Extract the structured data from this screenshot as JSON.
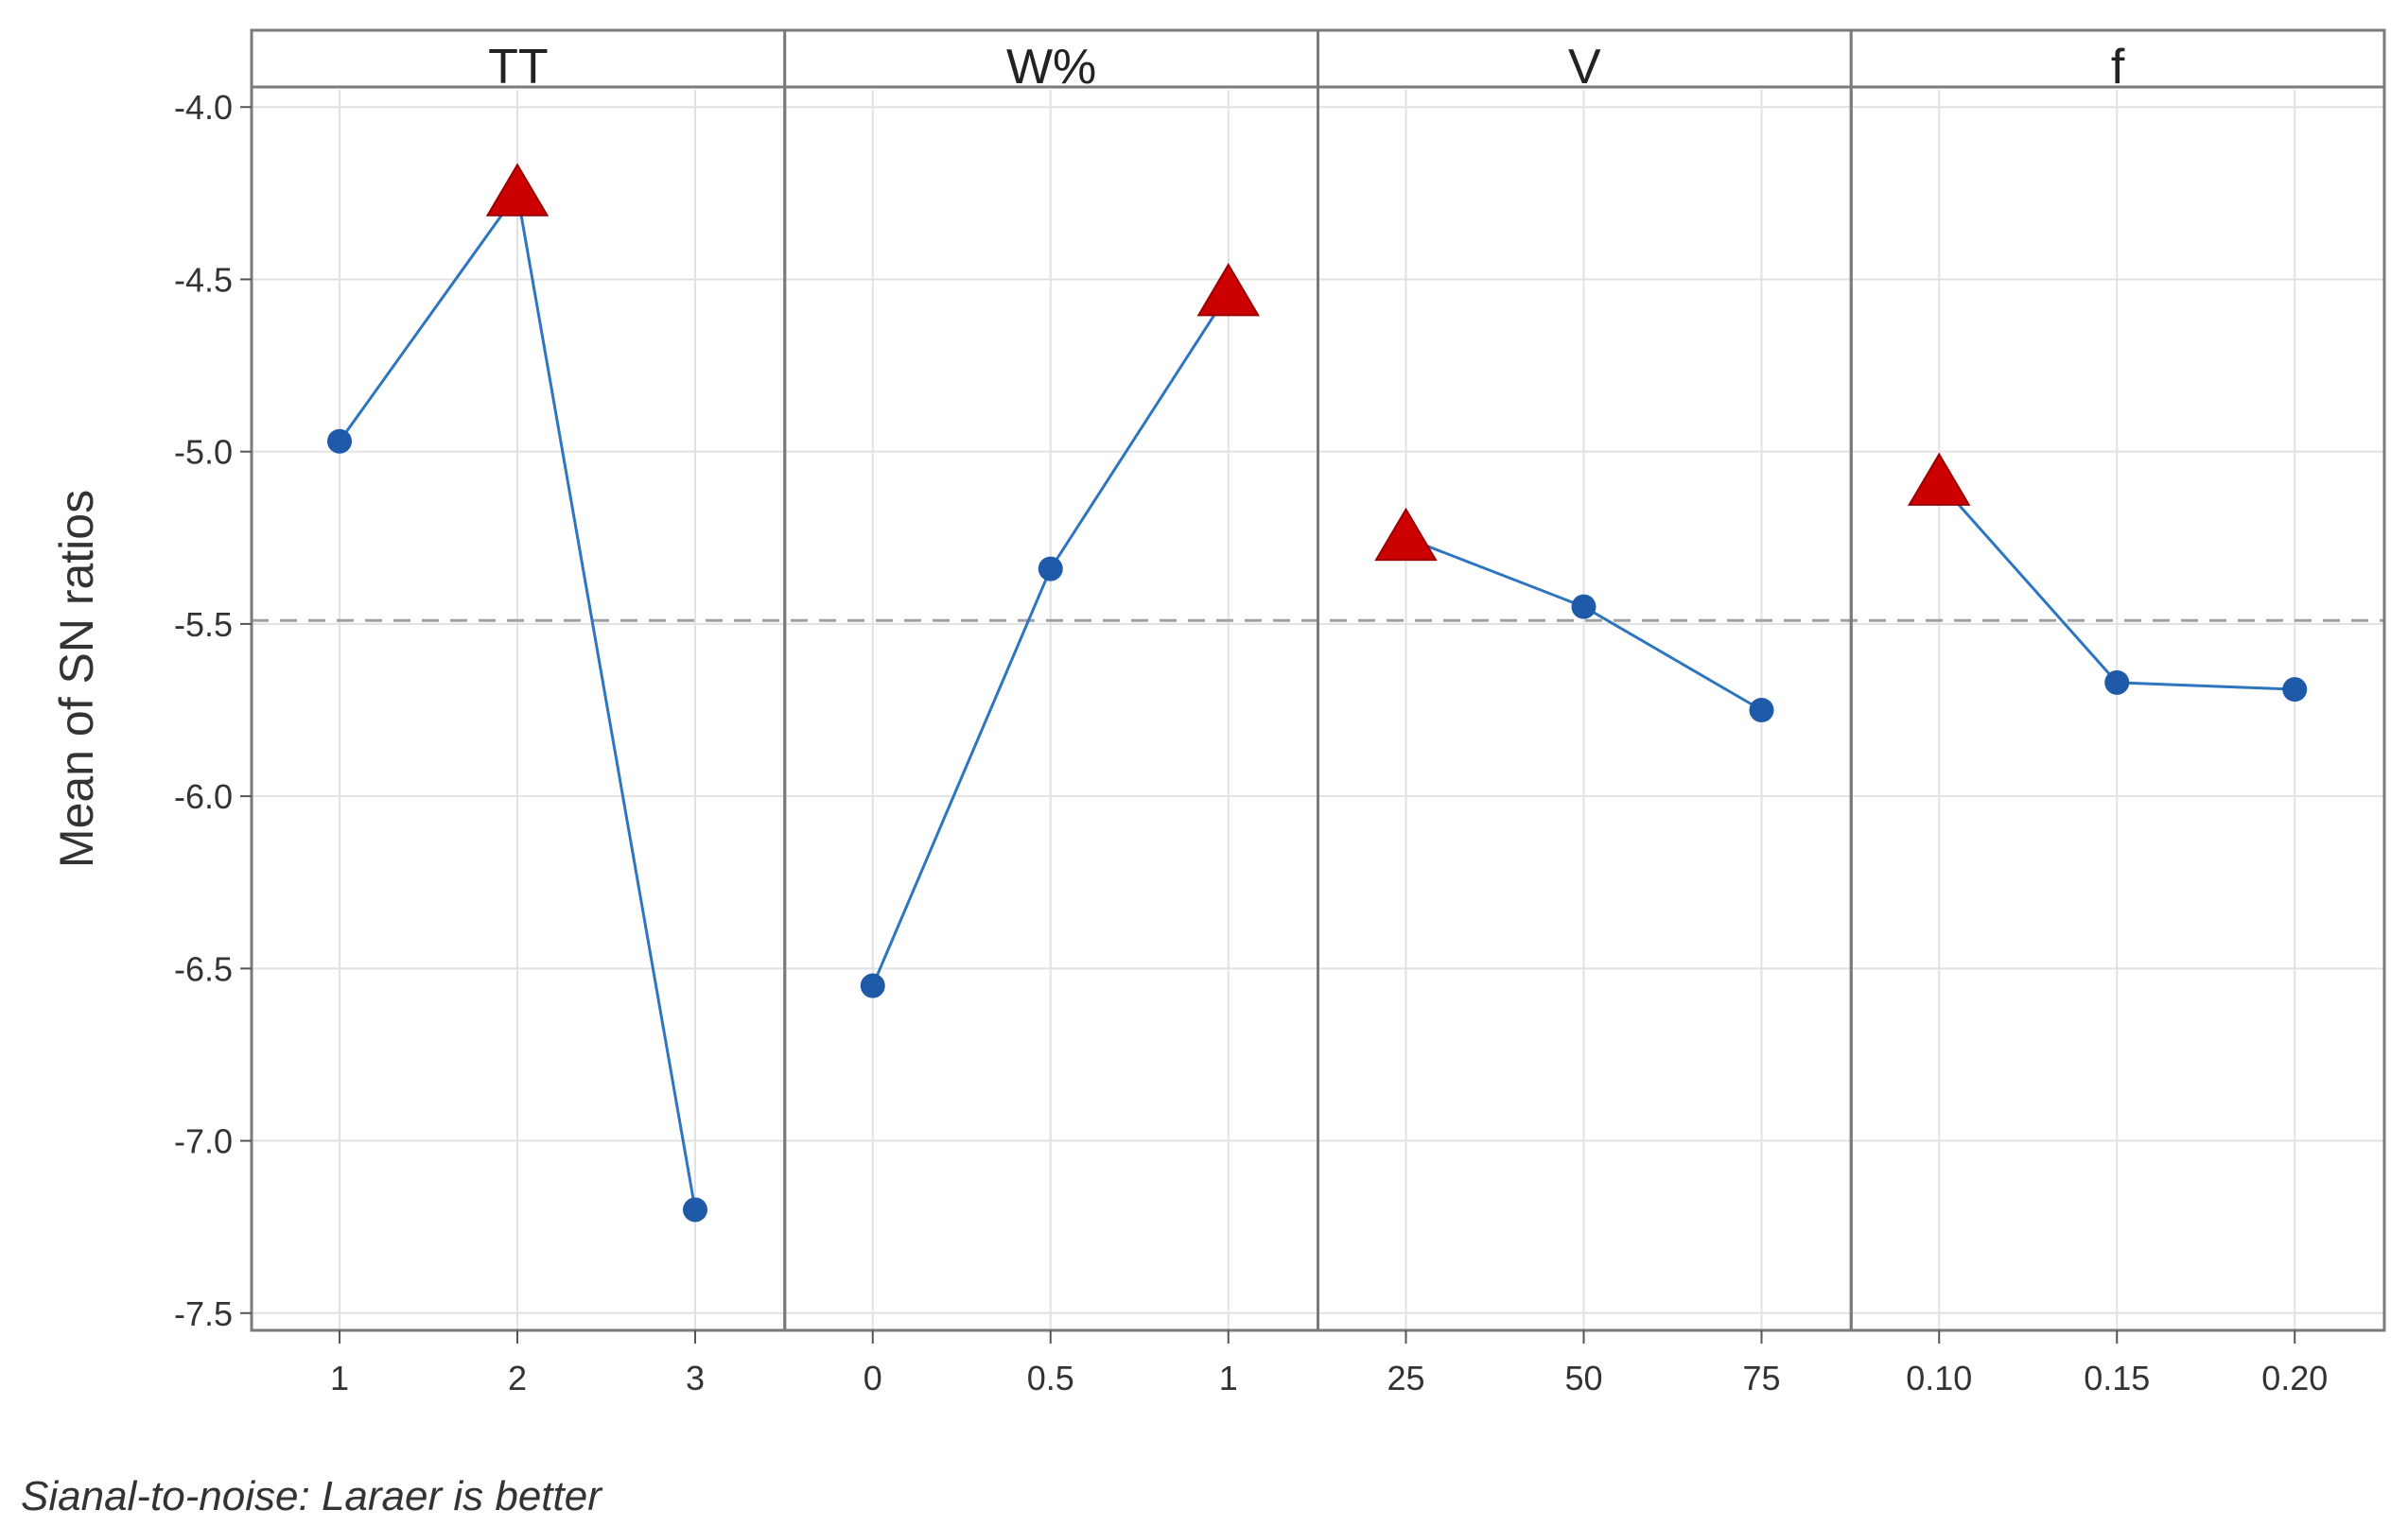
{
  "chart_data": {
    "type": "line",
    "ylabel": "Mean of SN ratios",
    "footnote": "Sianal-to-noise: Laraer is better",
    "ylim": [
      -7.55,
      -3.95
    ],
    "yticks": [
      -4.0,
      -4.5,
      -5.0,
      -5.5,
      -6.0,
      -6.5,
      -7.0,
      -7.5
    ],
    "ytick_labels": [
      "-4.0",
      "-4.5",
      "-5.0",
      "-5.5",
      "-6.0",
      "-6.5",
      "-7.0",
      "-7.5"
    ],
    "reference_line": -5.49,
    "grid": true,
    "colors": {
      "line": "#2e75c0",
      "point": "#1f5aa8",
      "marker": "#cc0000",
      "reference": "#a0a0a0"
    },
    "panels": [
      {
        "name": "TT",
        "categories": [
          "1",
          "2",
          "3"
        ],
        "values": [
          -4.97,
          -4.25,
          -7.2
        ],
        "best_index": 1
      },
      {
        "name": "W%",
        "categories": [
          "0",
          "0.5",
          "1"
        ],
        "values": [
          -6.55,
          -5.34,
          -4.54
        ],
        "best_index": 2
      },
      {
        "name": "V",
        "categories": [
          "25",
          "50",
          "75"
        ],
        "values": [
          -5.25,
          -5.45,
          -5.75
        ],
        "best_index": 0
      },
      {
        "name": "f",
        "categories": [
          "0.10",
          "0.15",
          "0.20"
        ],
        "values": [
          -5.09,
          -5.67,
          -5.69
        ],
        "best_index": 0
      }
    ]
  }
}
